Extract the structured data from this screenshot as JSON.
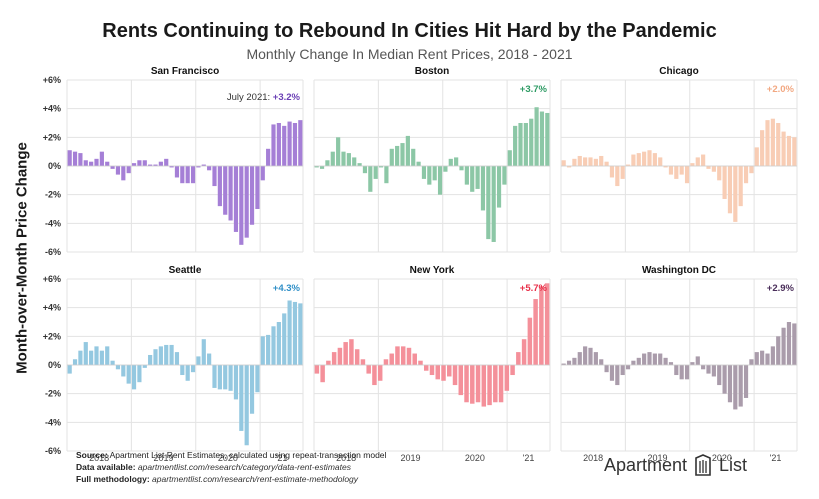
{
  "title": "Rents Continuing to Rebound In Cities Hit Hard by the Pandemic",
  "subtitle": "Monthly Change In Median Rent Prices, 2018 - 2021",
  "ylabel": "Month-over-Month Price Change",
  "footer": {
    "source_label": "Source:",
    "source_text": "Apartment List Rent Estimates, calculated using repeat-transaction model",
    "data_label": "Data available:",
    "data_text": "apartmentlist.com/research/category/data-rent-estimates",
    "method_label": "Full methodology:",
    "method_text": "apartmentlist.com/research/rent-estimate-methodology"
  },
  "logo": {
    "left": "Apartment",
    "right": "List"
  },
  "chart_data": [
    {
      "type": "bar",
      "title": "San Francisco",
      "color": "#a57fd6",
      "label_color": "#6a3fb5",
      "annotation_prefix": "July 2021: ",
      "annotation": "+3.2%",
      "x_ticks": [
        "2018",
        "2019",
        "2020",
        "'21"
      ],
      "y_ticks": [
        "+6%",
        "+4%",
        "+2%",
        "0%",
        "-2%",
        "-4%",
        "-6%"
      ],
      "ylim": [
        -6,
        6
      ],
      "values": [
        1.1,
        1.0,
        0.9,
        0.4,
        0.3,
        0.5,
        1.0,
        0.3,
        -0.2,
        -0.6,
        -1.0,
        -0.5,
        0.2,
        0.4,
        0.4,
        0.1,
        0.1,
        0.3,
        0.5,
        -0.1,
        -0.8,
        -1.2,
        -1.2,
        -1.2,
        -0.1,
        0.1,
        -0.3,
        -1.4,
        -2.8,
        -3.4,
        -3.8,
        -4.6,
        -5.5,
        -5.0,
        -4.1,
        -3.0,
        -1.0,
        1.2,
        2.9,
        3.0,
        2.8,
        3.1,
        3.0,
        3.2
      ]
    },
    {
      "type": "bar",
      "title": "Boston",
      "color": "#8cc7a6",
      "label_color": "#2e9b64",
      "annotation_prefix": "",
      "annotation": "+3.7%",
      "x_ticks": [
        "2018",
        "2019",
        "2020",
        "'21"
      ],
      "ylim": [
        -6,
        6
      ],
      "values": [
        -0.1,
        -0.2,
        0.4,
        1.0,
        2.0,
        1.0,
        0.9,
        0.6,
        0.2,
        -0.5,
        -1.8,
        -0.9,
        -0.1,
        -1.2,
        1.2,
        1.4,
        1.6,
        2.1,
        1.2,
        0.3,
        -0.9,
        -1.3,
        -1.0,
        -2.0,
        -0.4,
        0.5,
        0.6,
        -0.3,
        -1.3,
        -1.8,
        -1.6,
        -3.1,
        -5.1,
        -5.3,
        -2.9,
        -1.3,
        1.1,
        2.8,
        3.0,
        3.0,
        3.3,
        4.1,
        3.8,
        3.7
      ]
    },
    {
      "type": "bar",
      "title": "Chicago",
      "color": "#f8cdb5",
      "label_color": "#f2a882",
      "annotation_prefix": "",
      "annotation": "+2.0%",
      "x_ticks": [
        "2018",
        "2019",
        "2020",
        "'21"
      ],
      "ylim": [
        -6,
        6
      ],
      "values": [
        0.4,
        -0.1,
        0.5,
        0.7,
        0.6,
        0.6,
        0.5,
        0.7,
        0.3,
        -0.8,
        -1.4,
        -0.9,
        0.1,
        0.8,
        0.9,
        1.0,
        1.1,
        0.9,
        0.6,
        -0.1,
        -0.6,
        -0.9,
        -0.6,
        -1.2,
        0.2,
        0.6,
        0.8,
        -0.2,
        -0.4,
        -1.0,
        -2.3,
        -3.3,
        -3.9,
        -2.8,
        -1.2,
        -0.5,
        1.3,
        2.5,
        3.2,
        3.3,
        3.0,
        2.4,
        2.1,
        2.0
      ]
    },
    {
      "type": "bar",
      "title": "Seattle",
      "color": "#94c8e0",
      "label_color": "#2f8fc7",
      "annotation_prefix": "",
      "annotation": "+4.3%",
      "x_ticks": [
        "2018",
        "2019",
        "2020",
        "'21"
      ],
      "ylim": [
        -6,
        6
      ],
      "values": [
        -0.6,
        0.4,
        1.0,
        1.6,
        1.0,
        1.3,
        1.0,
        1.3,
        0.3,
        -0.3,
        -0.8,
        -1.3,
        -1.7,
        -1.2,
        -0.2,
        0.7,
        1.1,
        1.3,
        1.4,
        1.4,
        0.9,
        -0.7,
        -1.1,
        -0.5,
        0.6,
        1.8,
        0.8,
        -1.6,
        -1.7,
        -1.7,
        -1.8,
        -2.4,
        -4.6,
        -5.6,
        -3.4,
        -1.9,
        2.0,
        2.1,
        2.7,
        3.0,
        3.6,
        4.5,
        4.4,
        4.3
      ]
    },
    {
      "type": "bar",
      "title": "New York",
      "color": "#f4909a",
      "label_color": "#e8304a",
      "annotation_prefix": "",
      "annotation": "+5.7%",
      "x_ticks": [
        "2018",
        "2019",
        "2020",
        "'21"
      ],
      "ylim": [
        -6,
        6
      ],
      "values": [
        -0.6,
        -1.2,
        0.3,
        0.9,
        1.2,
        1.6,
        1.8,
        1.1,
        0.4,
        -0.6,
        -1.4,
        -1.1,
        0.4,
        0.8,
        1.3,
        1.3,
        1.2,
        0.8,
        0.3,
        -0.4,
        -0.7,
        -1.0,
        -1.1,
        -0.8,
        -1.4,
        -2.1,
        -2.6,
        -2.7,
        -2.6,
        -2.9,
        -2.8,
        -2.6,
        -2.6,
        -1.8,
        -0.7,
        0.9,
        1.8,
        3.3,
        4.6,
        5.5,
        5.7
      ]
    },
    {
      "type": "bar",
      "title": "Washington DC",
      "color": "#aa9cab",
      "label_color": "#4a2e5a",
      "annotation_prefix": "",
      "annotation": "+2.9%",
      "x_ticks": [
        "2018",
        "2019",
        "2020",
        "'21"
      ],
      "ylim": [
        -6,
        6
      ],
      "values": [
        0.1,
        0.3,
        0.5,
        0.9,
        1.3,
        1.2,
        0.9,
        0.4,
        -0.5,
        -1.1,
        -1.4,
        -0.7,
        -0.3,
        0.3,
        0.5,
        0.8,
        0.9,
        0.8,
        0.8,
        0.5,
        0.2,
        -0.7,
        -1.0,
        -1.0,
        0.2,
        0.6,
        -0.3,
        -0.6,
        -0.8,
        -1.4,
        -2.0,
        -2.6,
        -3.1,
        -2.9,
        -2.3,
        0.4,
        0.9,
        1.0,
        0.8,
        1.3,
        2.0,
        2.6,
        3.0,
        2.9
      ]
    }
  ]
}
